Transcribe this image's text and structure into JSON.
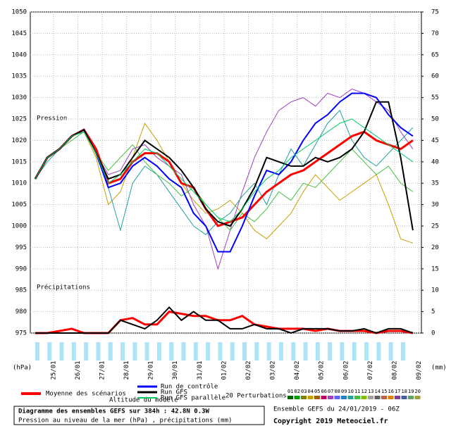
{
  "chart_data": {
    "type": "line",
    "pressure_label": "Pression",
    "precip_label": "Précipitations",
    "y_unit": "(hPa)",
    "y2_unit": "(mm)",
    "ylim": [
      975,
      1050
    ],
    "yticks": [
      975,
      980,
      985,
      990,
      995,
      1000,
      1005,
      1010,
      1015,
      1020,
      1025,
      1030,
      1035,
      1040,
      1045,
      1050
    ],
    "y2lim": [
      0,
      75
    ],
    "y2ticks": [
      0,
      5,
      10,
      15,
      20,
      25,
      30,
      35,
      40,
      45,
      50,
      55,
      60,
      65,
      70,
      75
    ],
    "xlim": [
      0.05,
      16.1
    ],
    "xticks": [
      {
        "value": 1,
        "label": "25/01"
      },
      {
        "value": 2,
        "label": "26/01"
      },
      {
        "value": 3,
        "label": "27/01"
      },
      {
        "value": 4,
        "label": "28/01"
      },
      {
        "value": 5,
        "label": "29/01"
      },
      {
        "value": 6,
        "label": "30/01"
      },
      {
        "value": 7,
        "label": "31/01"
      },
      {
        "value": 8,
        "label": "01/02"
      },
      {
        "value": 9,
        "label": "02/02"
      },
      {
        "value": 10,
        "label": "03/02"
      },
      {
        "value": 11,
        "label": "04/02"
      },
      {
        "value": 12,
        "label": "05/02"
      },
      {
        "value": 13,
        "label": "06/02"
      },
      {
        "value": 14,
        "label": "07/02"
      },
      {
        "value": 15,
        "label": "08/02"
      },
      {
        "value": 16,
        "label": "09/02"
      }
    ],
    "grid": true,
    "x": [
      0.25,
      0.75,
      1.25,
      1.75,
      2.25,
      2.75,
      3.25,
      3.75,
      4.25,
      4.75,
      5.25,
      5.75,
      6.25,
      6.75,
      7.25,
      7.75,
      8.25,
      8.75,
      9.25,
      9.75,
      10.25,
      10.75,
      11.25,
      11.75,
      12.25,
      12.75,
      13.25,
      13.75,
      14.25,
      14.75,
      15.25,
      15.75
    ],
    "perturbations": [
      {
        "color": "#c8a000",
        "values": [
          1011,
          1016,
          1018,
          1021,
          1022,
          1016,
          1005,
          1008,
          1016,
          1024,
          1020,
          1015,
          1010,
          1006,
          1003,
          1004,
          1006,
          1003,
          999,
          997,
          1000,
          1003,
          1008,
          1012,
          1009,
          1006,
          1008,
          1010,
          1012,
          1005,
          997,
          996
        ]
      },
      {
        "color": "#a040c0",
        "values": [
          1011,
          1016,
          1018,
          1021,
          1022,
          1017,
          1012,
          1013,
          1018,
          1019,
          1016,
          1014,
          1012,
          1005,
          1000,
          990,
          999,
          1008,
          1016,
          1022,
          1027,
          1029,
          1030,
          1028,
          1031,
          1030,
          1032,
          1031,
          1029,
          1027,
          1022,
          1018
        ]
      },
      {
        "color": "#20a0a0",
        "values": [
          1011,
          1015,
          1018,
          1021,
          1022,
          1018,
          1009,
          999,
          1010,
          1014,
          1012,
          1008,
          1004,
          1000,
          998,
          1001,
          1003,
          1007,
          1010,
          1005,
          1012,
          1018,
          1014,
          1019,
          1024,
          1027,
          1020,
          1016,
          1014,
          1017,
          1020,
          1023
        ]
      },
      {
        "color": "#40c040",
        "values": [
          1011,
          1016,
          1018,
          1020,
          1022,
          1017,
          1013,
          1016,
          1019,
          1015,
          1012,
          1010,
          1007,
          1009,
          1005,
          1002,
          999,
          1003,
          1001,
          1004,
          1008,
          1006,
          1010,
          1009,
          1012,
          1015,
          1018,
          1015,
          1012,
          1014,
          1010,
          1008
        ]
      }
    ],
    "series": [
      {
        "name": "Moyenne des scénarios",
        "color": "#ff0000",
        "width": 3,
        "values": [
          1011,
          1016,
          1018,
          1021,
          1022.5,
          1018,
          1010,
          1011,
          1015,
          1017,
          1017,
          1015,
          1010,
          1009,
          1004,
          1000,
          1001,
          1002,
          1005,
          1008,
          1010,
          1012,
          1013,
          1015,
          1017,
          1019,
          1021,
          1022,
          1020,
          1019,
          1018,
          1020
        ]
      },
      {
        "name": "Run de contrôle",
        "color": "#0000ff",
        "width": 2,
        "values": [
          1011,
          1016,
          1018,
          1021,
          1022.5,
          1017,
          1009,
          1010,
          1014,
          1016,
          1014,
          1011,
          1009,
          1003,
          1000,
          994,
          994,
          1000,
          1007,
          1013,
          1012,
          1015,
          1020,
          1024,
          1026,
          1029,
          1031,
          1031,
          1030,
          1026,
          1023,
          1021
        ]
      },
      {
        "name": "Run GFS",
        "color": "#000000",
        "width": 2,
        "values": [
          1011,
          1016,
          1018,
          1021,
          1022.5,
          1017,
          1011,
          1012,
          1016,
          1020,
          1018,
          1016,
          1013,
          1009,
          1004,
          1001,
          1000,
          1004,
          1009,
          1016,
          1015,
          1014,
          1014,
          1016,
          1015,
          1016,
          1018,
          1022,
          1029,
          1029,
          1016,
          999
        ]
      },
      {
        "name": "Run GFS parallèle",
        "color": "#00cc66",
        "width": 1,
        "values": [
          1011,
          1016,
          1018,
          1021,
          1022,
          1017,
          1010,
          1012,
          1015,
          1018,
          1017,
          1014,
          1011,
          1008,
          1005,
          1002,
          1001,
          1004,
          1008,
          1011,
          1013,
          1016,
          1018,
          1020,
          1022,
          1024,
          1025,
          1023,
          1021,
          1019,
          1017,
          1015
        ]
      },
      {
        "name": "Moyenne des scénarios",
        "color": "#ff0000",
        "width": 3,
        "axis": "y2",
        "legend": false,
        "values": [
          0,
          0,
          0.5,
          1,
          0,
          0,
          0,
          3,
          3.5,
          2,
          2,
          5,
          4.5,
          4,
          4,
          3,
          3,
          4,
          2,
          1.5,
          1,
          1,
          1,
          0.5,
          1,
          0.5,
          0.5,
          0.5,
          0,
          0.5,
          0.5,
          0
        ]
      },
      {
        "name": "Run GFS",
        "color": "#000000",
        "width": 2,
        "axis": "y2",
        "legend": false,
        "values": [
          0,
          0,
          0,
          0,
          0,
          0,
          0,
          3,
          2,
          1,
          3,
          6,
          3,
          5,
          3,
          3,
          1,
          1,
          2,
          1,
          1,
          0,
          1,
          1,
          1,
          0.5,
          0.5,
          1,
          0,
          1,
          1,
          0
        ]
      }
    ],
    "altitude_label": "Altitude du modèle",
    "perturbations_label": "20 Perturbations",
    "perturbation_numbers": [
      "01",
      "02",
      "03",
      "04",
      "05",
      "06",
      "07",
      "08",
      "09",
      "10",
      "11",
      "12",
      "13",
      "14",
      "15",
      "16",
      "17",
      "18",
      "19",
      "20"
    ],
    "perturbation_colors": [
      "#006400",
      "#00a000",
      "#808000",
      "#c8a000",
      "#a06000",
      "#c00060",
      "#a040c0",
      "#6060ff",
      "#2080c0",
      "#20a0a0",
      "#40c040",
      "#80c000",
      "#a0a0a0",
      "#606060",
      "#c06040",
      "#e08000",
      "#8040a0",
      "#4060a0",
      "#60a060",
      "#a0a040"
    ],
    "title": "Diagramme des ensembles GEFS sur 384h : 42.8N 0.3W",
    "subtitle": "Pression au niveau de la mer (hPa) , précipitations (mm)",
    "run_info": "Ensemble GEFS du 24/01/2019 - 06Z",
    "copyright": "Copyright 2019 Meteociel.fr"
  }
}
